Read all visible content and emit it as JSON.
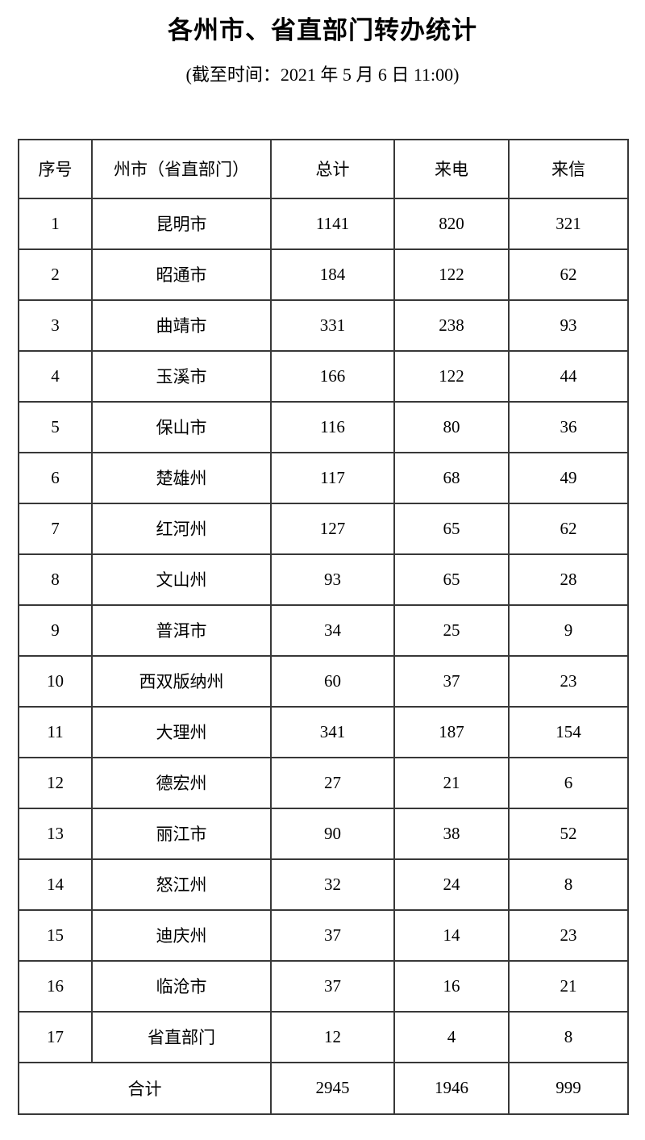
{
  "title": "各州市、省直部门转办统计",
  "subtitle": "(截至时间：2021 年 5 月 6 日 11:00)",
  "colors": {
    "background": "#ffffff",
    "text": "#000000",
    "table_border": "#383838"
  },
  "table": {
    "columns": [
      "序号",
      "州市（省直部门）",
      "总计",
      "来电",
      "来信"
    ],
    "rows": [
      {
        "no": "1",
        "name": "昆明市",
        "total": "1141",
        "calls": "820",
        "letters": "321"
      },
      {
        "no": "2",
        "name": "昭通市",
        "total": "184",
        "calls": "122",
        "letters": "62"
      },
      {
        "no": "3",
        "name": "曲靖市",
        "total": "331",
        "calls": "238",
        "letters": "93"
      },
      {
        "no": "4",
        "name": "玉溪市",
        "total": "166",
        "calls": "122",
        "letters": "44"
      },
      {
        "no": "5",
        "name": "保山市",
        "total": "116",
        "calls": "80",
        "letters": "36"
      },
      {
        "no": "6",
        "name": "楚雄州",
        "total": "117",
        "calls": "68",
        "letters": "49"
      },
      {
        "no": "7",
        "name": "红河州",
        "total": "127",
        "calls": "65",
        "letters": "62"
      },
      {
        "no": "8",
        "name": "文山州",
        "total": "93",
        "calls": "65",
        "letters": "28"
      },
      {
        "no": "9",
        "name": "普洱市",
        "total": "34",
        "calls": "25",
        "letters": "9"
      },
      {
        "no": "10",
        "name": "西双版纳州",
        "total": "60",
        "calls": "37",
        "letters": "23"
      },
      {
        "no": "11",
        "name": "大理州",
        "total": "341",
        "calls": "187",
        "letters": "154"
      },
      {
        "no": "12",
        "name": "德宏州",
        "total": "27",
        "calls": "21",
        "letters": "6"
      },
      {
        "no": "13",
        "name": "丽江市",
        "total": "90",
        "calls": "38",
        "letters": "52"
      },
      {
        "no": "14",
        "name": "怒江州",
        "total": "32",
        "calls": "24",
        "letters": "8"
      },
      {
        "no": "15",
        "name": "迪庆州",
        "total": "37",
        "calls": "14",
        "letters": "23"
      },
      {
        "no": "16",
        "name": "临沧市",
        "total": "37",
        "calls": "16",
        "letters": "21"
      },
      {
        "no": "17",
        "name": "省直部门",
        "total": "12",
        "calls": "4",
        "letters": "8"
      }
    ],
    "footer": {
      "label": "合计",
      "total": "2945",
      "calls": "1946",
      "letters": "999"
    }
  }
}
